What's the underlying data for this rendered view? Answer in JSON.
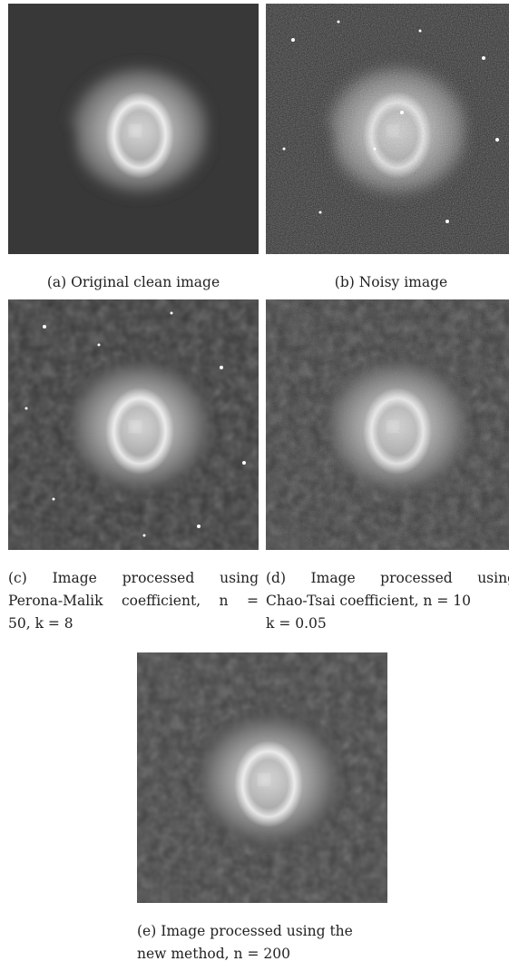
{
  "figure": {
    "panels": [
      {
        "caption_lines": [
          "(a) Original clean image"
        ]
      },
      {
        "caption_lines": [
          "(b) Noisy image"
        ]
      },
      {
        "caption_lines": [
          "(c) Image processed using",
          "Perona-Malik coefficient, n =",
          "50, k = 8"
        ]
      },
      {
        "caption_lines": [
          "(d) Image processed using",
          "Chao-Tsai coefficient, n = 10",
          "k = 0.05"
        ]
      },
      {
        "caption_lines": [
          "(e) Image processed using the",
          "new method, n = 200"
        ]
      }
    ]
  }
}
